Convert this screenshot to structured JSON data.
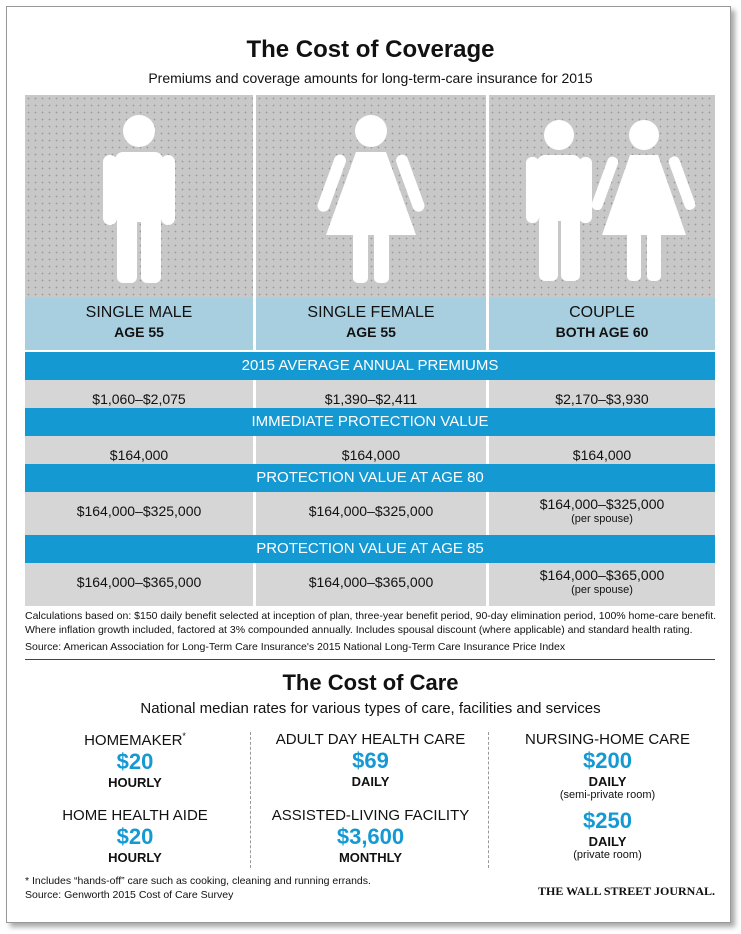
{
  "coverage": {
    "title": "The Cost of Coverage",
    "subtitle": "Premiums and coverage amounts for long-term-care insurance for 2015",
    "columns": [
      {
        "label": "SINGLE MALE",
        "age": "AGE 55",
        "icon": "male-figure-icon"
      },
      {
        "label": "SINGLE FEMALE",
        "age": "AGE 55",
        "icon": "female-figure-icon"
      },
      {
        "label": "COUPLE",
        "age": "BOTH AGE 60",
        "icon": "couple-figure-icon"
      }
    ],
    "sections": [
      {
        "header": "2015 AVERAGE ANNUAL PREMIUMS",
        "values": [
          "$1,060–$2,075",
          "$1,390–$2,411",
          "$2,170–$3,930"
        ],
        "note": ""
      },
      {
        "header": "IMMEDIATE PROTECTION VALUE",
        "values": [
          "$164,000",
          "$164,000",
          "$164,000"
        ],
        "note": ""
      },
      {
        "header": "PROTECTION VALUE AT AGE 80",
        "values": [
          "$164,000–$325,000",
          "$164,000–$325,000",
          "$164,000–$325,000"
        ],
        "note": "(per spouse)"
      },
      {
        "header": "PROTECTION VALUE AT AGE 85",
        "values": [
          "$164,000–$365,000",
          "$164,000–$365,000",
          "$164,000–$365,000"
        ],
        "note": "(per spouse)"
      }
    ],
    "calc_note_1": "Calculations based on:  $150 daily benefit selected at inception of plan, three-year benefit period, 90-day elimination period, 100% home-care benefit.",
    "calc_note_2": "Where inflation growth included, factored at 3% compounded annually.  Includes spousal discount (where applicable) and standard health rating.",
    "source": "Source: American Association for Long-Term Care Insurance's 2015 National Long-Term Care Insurance Price Index"
  },
  "care": {
    "title": "The Cost of Care",
    "subtitle": "National median rates for various types of care, facilities and services",
    "items": [
      {
        "label": "HOMEMAKER",
        "marker": "*",
        "price": "$20",
        "unit": "HOURLY",
        "note": ""
      },
      {
        "label": "HOME HEALTH AIDE",
        "marker": "",
        "price": "$20",
        "unit": "HOURLY",
        "note": ""
      },
      {
        "label": "ADULT DAY HEALTH CARE",
        "marker": "",
        "price": "$69",
        "unit": "DAILY",
        "note": ""
      },
      {
        "label": "ASSISTED-LIVING FACILITY",
        "marker": "",
        "price": "$3,600",
        "unit": "MONTHLY",
        "note": ""
      },
      {
        "label": "NURSING-HOME CARE",
        "marker": "",
        "price": "$200",
        "unit": "DAILY",
        "note": "(semi-private room)"
      },
      {
        "label": "",
        "marker": "",
        "price": "$250",
        "unit": "DAILY",
        "note": "(private room)"
      }
    ],
    "footnote": "* Includes “hands-off” care such as cooking, cleaning and running errands.",
    "source": "Source: Genworth 2015 Cost of Care Survey",
    "credit": "THE WALL STREET JOURNAL."
  },
  "colors": {
    "accent": "#1599d3",
    "label_bg": "#a8cfe0",
    "row_bg": "#d6d6d6",
    "image_bg": "#c8c8c8"
  }
}
